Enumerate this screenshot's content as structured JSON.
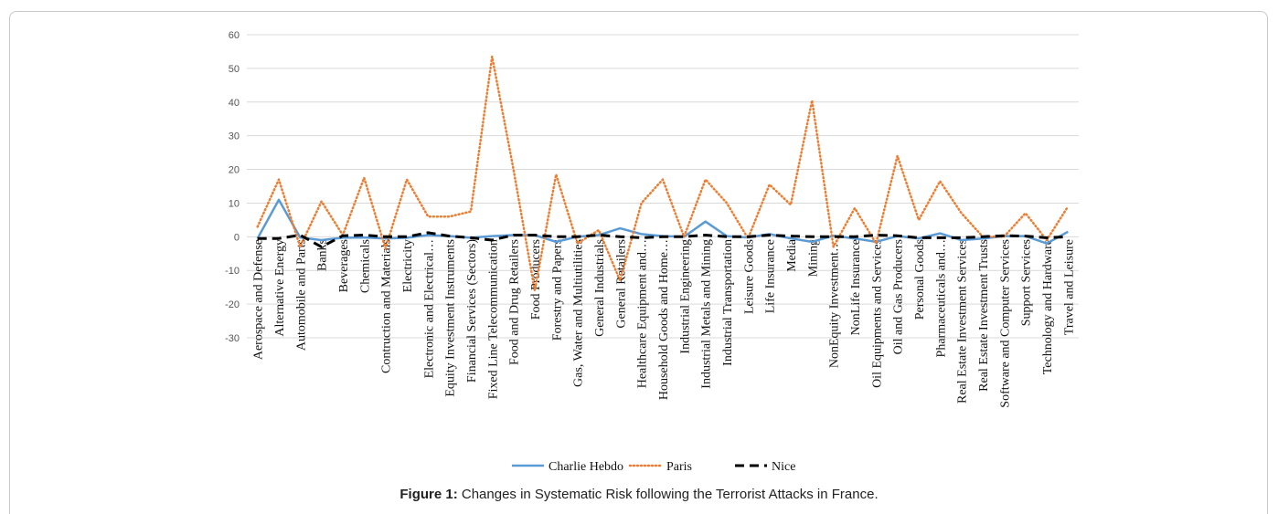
{
  "caption": {
    "label": "Figure 1:",
    "text": " Changes in Systematic Risk following the Terrorist Attacks in France."
  },
  "chart_data": {
    "type": "line",
    "title": "",
    "xlabel": "",
    "ylabel": "",
    "ylim": [
      -30,
      60
    ],
    "yticks": [
      60,
      50,
      40,
      30,
      20,
      10,
      0,
      -10,
      -20,
      -30
    ],
    "grid": true,
    "legend_position": "bottom",
    "categories": [
      "Aerospace and Defense",
      "Alternative Energy",
      "Automobile and Parts",
      "Banks",
      "Beverages",
      "Chemicals",
      "Contruction and Materials",
      "Electricity",
      "Electronic and Electrical…",
      "Equity Investment Instruments",
      "Financial Services (Sectors)",
      "Fixed Line Telecommunication",
      "Food and Drug Retailers",
      "Food Producers",
      "Forestry and Papers",
      "Gas, Water and Multiutilities",
      "General Industrials",
      "General Retailers",
      "Healthcare Equipment and…",
      "Household Goods and Home…",
      "Industrial Engineering",
      "Industrial Metals and Mining",
      "Industrial Transportation",
      "Leisure Goods",
      "Life Insurance",
      "Media",
      "Mining",
      "NonEquity Investment…",
      "NonLife Insurance",
      "Oil Equipments and Services",
      "Oil and Gas Producers",
      "Personal Goods",
      "Pharmaceuticals and…",
      "Real Estate Investment Services",
      "Real Estate Investment Trusts",
      "Software and Computer Services",
      "Support Services",
      "Technology and Hardware",
      "Travel and Leisure"
    ],
    "series": [
      {
        "name": "Charlie Hebdo",
        "color": "#5b9bd5",
        "style": "solid",
        "values": [
          -0.5,
          11,
          -0.2,
          -1,
          -0.3,
          -0.2,
          -0.5,
          -0.3,
          0.5,
          0.2,
          -0.3,
          0.2,
          0.5,
          0.5,
          -1.5,
          0,
          0.5,
          2.5,
          0.8,
          0.2,
          0,
          4.5,
          0.2,
          -0.2,
          0.8,
          -0.5,
          -1.5,
          0.3,
          -0.5,
          -1.5,
          0.2,
          -0.5,
          1,
          -1,
          -0.5,
          0.2,
          0.2,
          -2,
          1.5
        ]
      },
      {
        "name": "Paris",
        "color": "#ed7d31",
        "style": "dotted",
        "values": [
          3,
          17,
          -3,
          10.5,
          0.5,
          17.5,
          -3.5,
          17,
          6,
          6,
          7.5,
          53.5,
          20,
          -16,
          18.5,
          -2,
          2,
          -13,
          10,
          17,
          0,
          17,
          10,
          -0.5,
          15.5,
          9.5,
          40.5,
          -3,
          8.5,
          -2,
          24,
          5,
          16.5,
          7,
          0,
          0,
          7,
          -1,
          9
        ]
      },
      {
        "name": "Nice",
        "color": "#000000",
        "style": "dashed",
        "values": [
          -0.5,
          -0.5,
          0.5,
          -3,
          0.3,
          0.5,
          0,
          0,
          1.2,
          0.2,
          -0.3,
          -1,
          0.5,
          0.5,
          0,
          0,
          0.5,
          0,
          -0.3,
          0,
          0,
          0.5,
          0,
          0,
          0.5,
          0.2,
          0,
          0,
          0,
          0.5,
          0.3,
          -0.3,
          -0.3,
          -0.3,
          0,
          0.3,
          0.2,
          -0.3,
          0
        ]
      }
    ]
  }
}
